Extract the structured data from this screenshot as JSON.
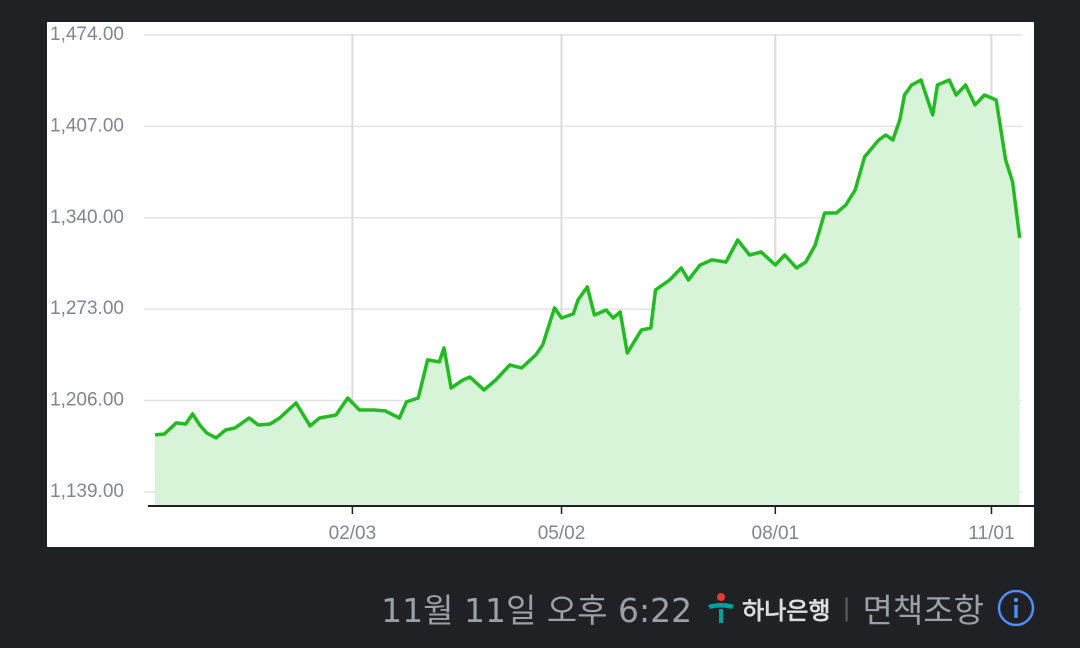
{
  "chart_data": {
    "type": "area",
    "x": [
      -50,
      -46,
      -41,
      -37,
      -34,
      -31,
      -28,
      -24,
      -20,
      -16,
      -10,
      -6,
      -1,
      3,
      10,
      16,
      20,
      27,
      32,
      37,
      43,
      48,
      54,
      57,
      62,
      66,
      71,
      73,
      76,
      81,
      84,
      90,
      95,
      101,
      106,
      112,
      115,
      120,
      123,
      128,
      130,
      134,
      137,
      142,
      145,
      148,
      151,
      157,
      161,
      163,
      169,
      174,
      177,
      182,
      187,
      193,
      198,
      203,
      208,
      214,
      218,
      223,
      227,
      231,
      235,
      240,
      244,
      248,
      252,
      258,
      261,
      264,
      267,
      269,
      272,
      276,
      281,
      283,
      288,
      291,
      295,
      299,
      303,
      308,
      312,
      315,
      318
    ],
    "values": [
      1180.8,
      1181.5,
      1189.6,
      1188.8,
      1196.2,
      1188.1,
      1182.2,
      1178.6,
      1184.4,
      1185.9,
      1193.2,
      1188.1,
      1188.8,
      1193.2,
      1204.2,
      1187.4,
      1193.2,
      1195.4,
      1207.9,
      1199.1,
      1199.1,
      1198.4,
      1193.2,
      1205,
      1207.9,
      1235.8,
      1234.3,
      1244.6,
      1215.2,
      1221.1,
      1223.3,
      1213.8,
      1221.1,
      1232.1,
      1229.9,
      1239.4,
      1246.8,
      1273.9,
      1266.5,
      1269.5,
      1279.7,
      1289.3,
      1268.7,
      1272.4,
      1266.5,
      1270.9,
      1240.9,
      1257.7,
      1259.2,
      1287.1,
      1294.4,
      1303.2,
      1294.4,
      1305.4,
      1309.1,
      1307.6,
      1323.7,
      1312.7,
      1314.9,
      1305.4,
      1312.7,
      1303.2,
      1307.6,
      1320,
      1343.5,
      1343.5,
      1349.4,
      1360.4,
      1384.6,
      1397,
      1400.7,
      1397,
      1411.7,
      1430,
      1437.3,
      1441,
      1415.3,
      1437.3,
      1441,
      1430,
      1437.3,
      1422.7,
      1430,
      1426.3,
      1382.4,
      1366.2,
      1325.2
    ],
    "color": "#22bb22",
    "fill": "#d8f4d8",
    "xlim": [
      -53,
      319
    ],
    "xticks": [
      {
        "value": 34,
        "label": "02/03"
      },
      {
        "value": 123,
        "label": "05/02"
      },
      {
        "value": 214,
        "label": "08/01"
      },
      {
        "value": 306,
        "label": "11/01"
      }
    ],
    "ylim": [
      1128.7,
      1483.5
    ],
    "yticks": [
      {
        "value": 1139,
        "label": "1,139.00"
      },
      {
        "value": 1206,
        "label": "1,206.00"
      },
      {
        "value": 1273,
        "label": "1,273.00"
      },
      {
        "value": 1340,
        "label": "1,340.00"
      },
      {
        "value": 1407,
        "label": "1,407.00"
      },
      {
        "value": 1474,
        "label": "1,474.00"
      }
    ],
    "grid": true
  },
  "footer": {
    "timestamp": "11월 11일 오후 6:22",
    "source": "하나은행",
    "disclaimer": "면책조항"
  }
}
